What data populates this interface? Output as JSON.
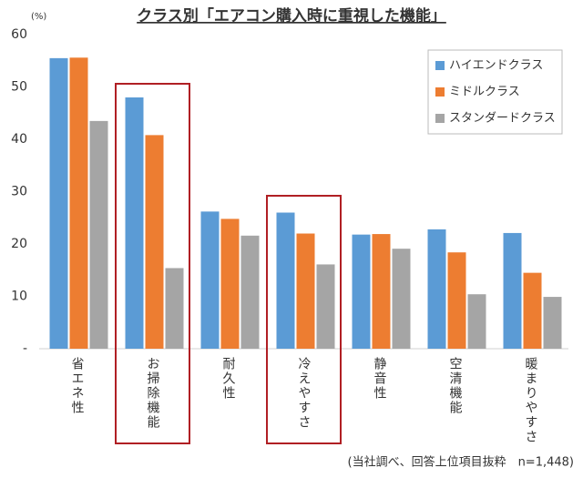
{
  "chart_data": {
    "type": "bar",
    "title": "クラス別「エアコン購入時に重視した機能」",
    "y_unit": "(%)",
    "note": "(当社調べ、回答上位項目抜粋　n=1,448)",
    "categories": [
      "省エネ性",
      "お掃除機能",
      "耐久性",
      "冷えやすさ",
      "静音性",
      "空清機能",
      "暖まりやすさ"
    ],
    "series": [
      {
        "name": "ハイエンドクラス",
        "color": "#5b9bd5",
        "values": [
          55.5,
          48,
          26.2,
          26,
          21.8,
          22.8,
          22.1
        ]
      },
      {
        "name": "ミドルクラス",
        "color": "#ed7d31",
        "values": [
          55.6,
          40.8,
          24.8,
          22,
          21.9,
          18.4,
          14.5
        ]
      },
      {
        "name": "スタンダードクラス",
        "color": "#a5a5a5",
        "values": [
          43.5,
          15.4,
          21.6,
          16.1,
          19.1,
          10.4,
          9.9
        ]
      }
    ],
    "ylim": [
      0,
      60
    ],
    "yticks": [
      {
        "value": 0,
        "label": "-"
      },
      10,
      20,
      30,
      40,
      50,
      60
    ],
    "grid": false,
    "legend": "top-right"
  }
}
